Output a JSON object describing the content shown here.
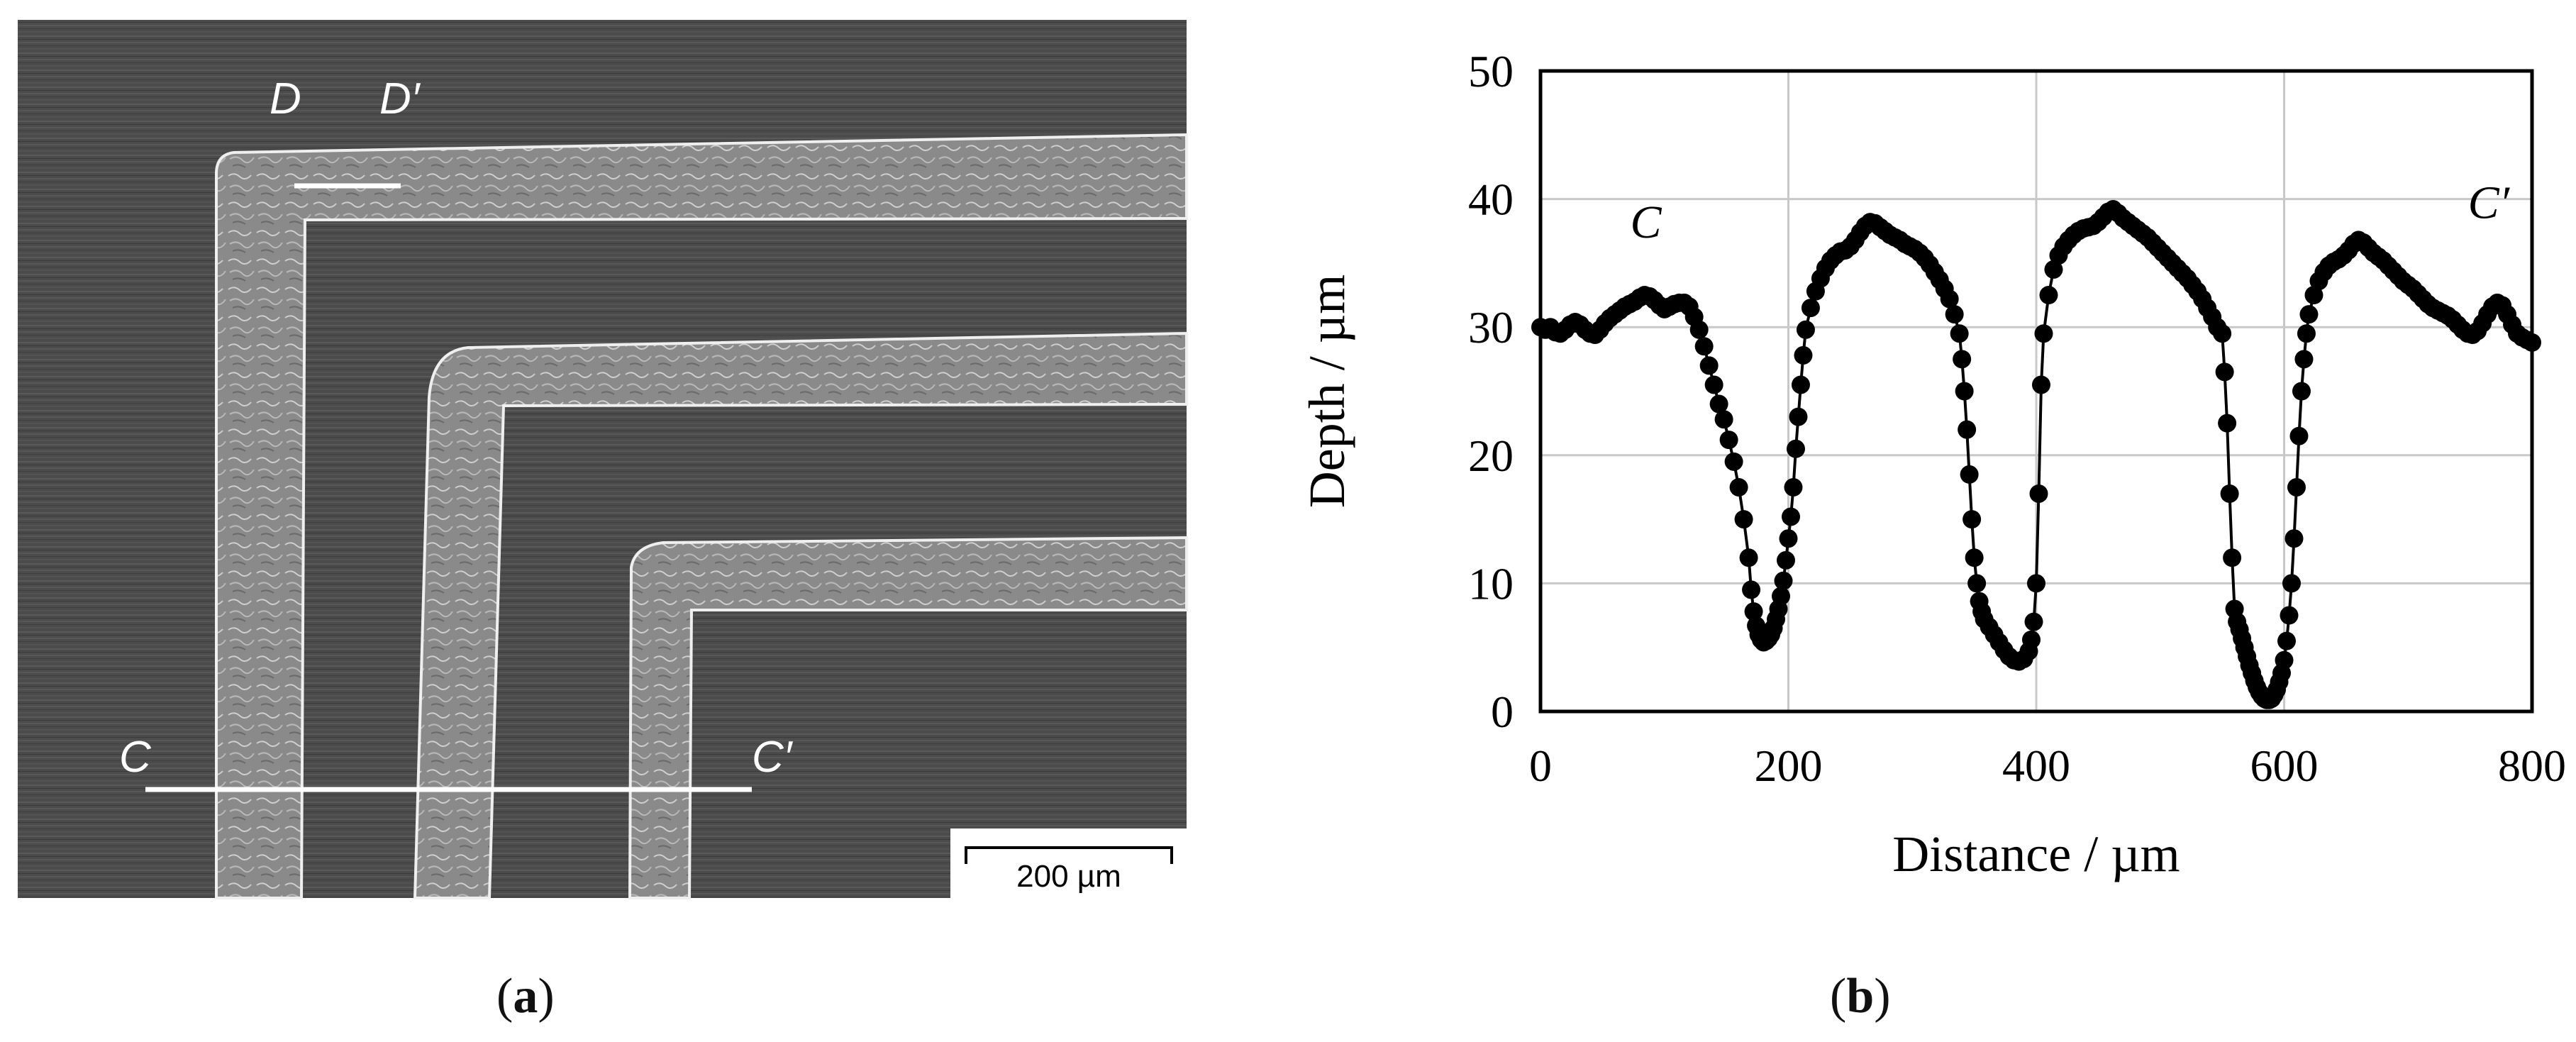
{
  "figure": {
    "panel_a_caption": {
      "open": "(",
      "letter": "a",
      "close": ")"
    },
    "panel_b_caption": {
      "open": "(",
      "letter": "b",
      "close": ")"
    }
  },
  "sem_image": {
    "labels": {
      "d": "D",
      "d_prime": "D′",
      "c": "C",
      "c_prime": "C′"
    },
    "scale_bar_text": "200 µm",
    "colors": {
      "background": "#4a4a4a",
      "marker_line": "#ffffff"
    }
  },
  "chart_data": {
    "type": "scatter",
    "title": "",
    "xlabel": "Distance / µm",
    "ylabel": "Depth / µm",
    "xlim": [
      0,
      800
    ],
    "ylim": [
      0,
      50
    ],
    "xticks": [
      0,
      200,
      400,
      600,
      800
    ],
    "yticks": [
      0,
      10,
      20,
      30,
      40,
      50
    ],
    "grid": true,
    "annotations": [
      {
        "text": "C",
        "x": 85,
        "y": 37
      },
      {
        "text": "C′",
        "x": 765,
        "y": 38.5
      }
    ],
    "series": [
      {
        "color": "#000000",
        "marker": "circle",
        "line": true,
        "points": [
          [
            0,
            30
          ],
          [
            4,
            29.8
          ],
          [
            8,
            30
          ],
          [
            12,
            29.6
          ],
          [
            16,
            29.5
          ],
          [
            20,
            29.8
          ],
          [
            24,
            30.2
          ],
          [
            28,
            30.4
          ],
          [
            32,
            30.2
          ],
          [
            36,
            29.8
          ],
          [
            40,
            29.5
          ],
          [
            44,
            29.4
          ],
          [
            48,
            29.8
          ],
          [
            52,
            30.3
          ],
          [
            56,
            30.7
          ],
          [
            60,
            31
          ],
          [
            64,
            31.3
          ],
          [
            68,
            31.6
          ],
          [
            72,
            31.8
          ],
          [
            76,
            32
          ],
          [
            80,
            32.3
          ],
          [
            84,
            32.5
          ],
          [
            88,
            32.4
          ],
          [
            92,
            32.1
          ],
          [
            96,
            31.7
          ],
          [
            100,
            31.4
          ],
          [
            104,
            31.6
          ],
          [
            108,
            31.8
          ],
          [
            112,
            31.9
          ],
          [
            116,
            31.9
          ],
          [
            120,
            31.6
          ],
          [
            124,
            30.8
          ],
          [
            128,
            29.8
          ],
          [
            132,
            28.5
          ],
          [
            136,
            27
          ],
          [
            140,
            25.5
          ],
          [
            144,
            24
          ],
          [
            148,
            22.8
          ],
          [
            152,
            21.2
          ],
          [
            156,
            19.5
          ],
          [
            160,
            17.5
          ],
          [
            164,
            15
          ],
          [
            168,
            12
          ],
          [
            170,
            9.5
          ],
          [
            172,
            7.8
          ],
          [
            174,
            6.7
          ],
          [
            176,
            6
          ],
          [
            178,
            5.6
          ],
          [
            180,
            5.4
          ],
          [
            182,
            5.5
          ],
          [
            184,
            5.7
          ],
          [
            186,
            6
          ],
          [
            188,
            6.5
          ],
          [
            190,
            7.2
          ],
          [
            192,
            8
          ],
          [
            194,
            9
          ],
          [
            196,
            10.2
          ],
          [
            198,
            11.8
          ],
          [
            200,
            13.5
          ],
          [
            202,
            15.2
          ],
          [
            204,
            17.5
          ],
          [
            206,
            20.5
          ],
          [
            208,
            23
          ],
          [
            210,
            25.5
          ],
          [
            212,
            27.8
          ],
          [
            214,
            29.8
          ],
          [
            218,
            31.5
          ],
          [
            222,
            32.8
          ],
          [
            226,
            33.8
          ],
          [
            230,
            34.6
          ],
          [
            234,
            35.2
          ],
          [
            238,
            35.6
          ],
          [
            242,
            35.9
          ],
          [
            246,
            36
          ],
          [
            250,
            36.3
          ],
          [
            254,
            36.8
          ],
          [
            258,
            37.4
          ],
          [
            262,
            37.9
          ],
          [
            266,
            38.2
          ],
          [
            270,
            38.1
          ],
          [
            274,
            37.8
          ],
          [
            278,
            37.5
          ],
          [
            282,
            37.2
          ],
          [
            286,
            37
          ],
          [
            290,
            36.8
          ],
          [
            294,
            36.5
          ],
          [
            298,
            36.3
          ],
          [
            302,
            36.1
          ],
          [
            306,
            35.8
          ],
          [
            310,
            35.4
          ],
          [
            314,
            34.9
          ],
          [
            318,
            34.3
          ],
          [
            322,
            33.7
          ],
          [
            326,
            33
          ],
          [
            330,
            32.2
          ],
          [
            334,
            31
          ],
          [
            338,
            29.5
          ],
          [
            340,
            27.5
          ],
          [
            342,
            25
          ],
          [
            344,
            22
          ],
          [
            346,
            18.5
          ],
          [
            348,
            15
          ],
          [
            350,
            12
          ],
          [
            352,
            10
          ],
          [
            354,
            8.6
          ],
          [
            356,
            7.8
          ],
          [
            358,
            7.2
          ],
          [
            362,
            6.6
          ],
          [
            366,
            6
          ],
          [
            370,
            5.4
          ],
          [
            374,
            4.8
          ],
          [
            378,
            4.3
          ],
          [
            382,
            4
          ],
          [
            386,
            3.9
          ],
          [
            390,
            4.1
          ],
          [
            394,
            4.7
          ],
          [
            396,
            5.6
          ],
          [
            398,
            7
          ],
          [
            400,
            10
          ],
          [
            402,
            17
          ],
          [
            404,
            25.5
          ],
          [
            406,
            29.5
          ],
          [
            410,
            32.5
          ],
          [
            414,
            34.5
          ],
          [
            418,
            35.6
          ],
          [
            422,
            36.3
          ],
          [
            426,
            36.8
          ],
          [
            430,
            37.2
          ],
          [
            434,
            37.5
          ],
          [
            438,
            37.7
          ],
          [
            442,
            37.8
          ],
          [
            446,
            37.9
          ],
          [
            450,
            38.2
          ],
          [
            454,
            38.6
          ],
          [
            458,
            39
          ],
          [
            462,
            39.2
          ],
          [
            466,
            38.9
          ],
          [
            470,
            38.5
          ],
          [
            474,
            38.2
          ],
          [
            478,
            37.9
          ],
          [
            482,
            37.6
          ],
          [
            486,
            37.3
          ],
          [
            490,
            37
          ],
          [
            494,
            36.6
          ],
          [
            498,
            36.2
          ],
          [
            502,
            35.8
          ],
          [
            506,
            35.4
          ],
          [
            510,
            35
          ],
          [
            514,
            34.6
          ],
          [
            518,
            34.2
          ],
          [
            522,
            33.8
          ],
          [
            526,
            33.3
          ],
          [
            530,
            32.8
          ],
          [
            534,
            32.2
          ],
          [
            538,
            31.5
          ],
          [
            542,
            30.8
          ],
          [
            546,
            30
          ],
          [
            550,
            29.5
          ],
          [
            552,
            26.5
          ],
          [
            554,
            22.5
          ],
          [
            556,
            17
          ],
          [
            558,
            12
          ],
          [
            560,
            8
          ],
          [
            562,
            7
          ],
          [
            564,
            6.4
          ],
          [
            566,
            5.7
          ],
          [
            568,
            5
          ],
          [
            570,
            4.3
          ],
          [
            572,
            3.6
          ],
          [
            574,
            3
          ],
          [
            576,
            2.4
          ],
          [
            578,
            1.9
          ],
          [
            580,
            1.5
          ],
          [
            582,
            1.2
          ],
          [
            584,
            1
          ],
          [
            586,
            0.9
          ],
          [
            588,
            0.9
          ],
          [
            590,
            1
          ],
          [
            592,
            1.3
          ],
          [
            594,
            1.7
          ],
          [
            596,
            2.3
          ],
          [
            598,
            3
          ],
          [
            600,
            4
          ],
          [
            602,
            5.5
          ],
          [
            604,
            7.5
          ],
          [
            606,
            10
          ],
          [
            608,
            13.5
          ],
          [
            610,
            17.5
          ],
          [
            612,
            21.5
          ],
          [
            614,
            25
          ],
          [
            616,
            27.5
          ],
          [
            618,
            29.5
          ],
          [
            620,
            31
          ],
          [
            624,
            32.5
          ],
          [
            628,
            33.6
          ],
          [
            632,
            34.3
          ],
          [
            636,
            34.8
          ],
          [
            640,
            35.1
          ],
          [
            644,
            35.3
          ],
          [
            648,
            35.6
          ],
          [
            652,
            36
          ],
          [
            656,
            36.5
          ],
          [
            660,
            36.8
          ],
          [
            664,
            36.6
          ],
          [
            668,
            36.2
          ],
          [
            672,
            35.8
          ],
          [
            676,
            35.5
          ],
          [
            680,
            35.2
          ],
          [
            684,
            34.8
          ],
          [
            688,
            34.4
          ],
          [
            692,
            34
          ],
          [
            696,
            33.6
          ],
          [
            700,
            33.3
          ],
          [
            704,
            33
          ],
          [
            708,
            32.6
          ],
          [
            712,
            32.2
          ],
          [
            716,
            31.8
          ],
          [
            720,
            31.5
          ],
          [
            724,
            31.3
          ],
          [
            728,
            31.1
          ],
          [
            732,
            30.9
          ],
          [
            736,
            30.6
          ],
          [
            740,
            30.2
          ],
          [
            744,
            29.8
          ],
          [
            748,
            29.5
          ],
          [
            752,
            29.4
          ],
          [
            756,
            29.7
          ],
          [
            760,
            30.3
          ],
          [
            764,
            31
          ],
          [
            768,
            31.6
          ],
          [
            772,
            31.9
          ],
          [
            776,
            31.7
          ],
          [
            780,
            31
          ],
          [
            784,
            30.2
          ],
          [
            788,
            29.5
          ],
          [
            792,
            29.2
          ],
          [
            796,
            29
          ],
          [
            800,
            28.8
          ]
        ]
      }
    ]
  }
}
